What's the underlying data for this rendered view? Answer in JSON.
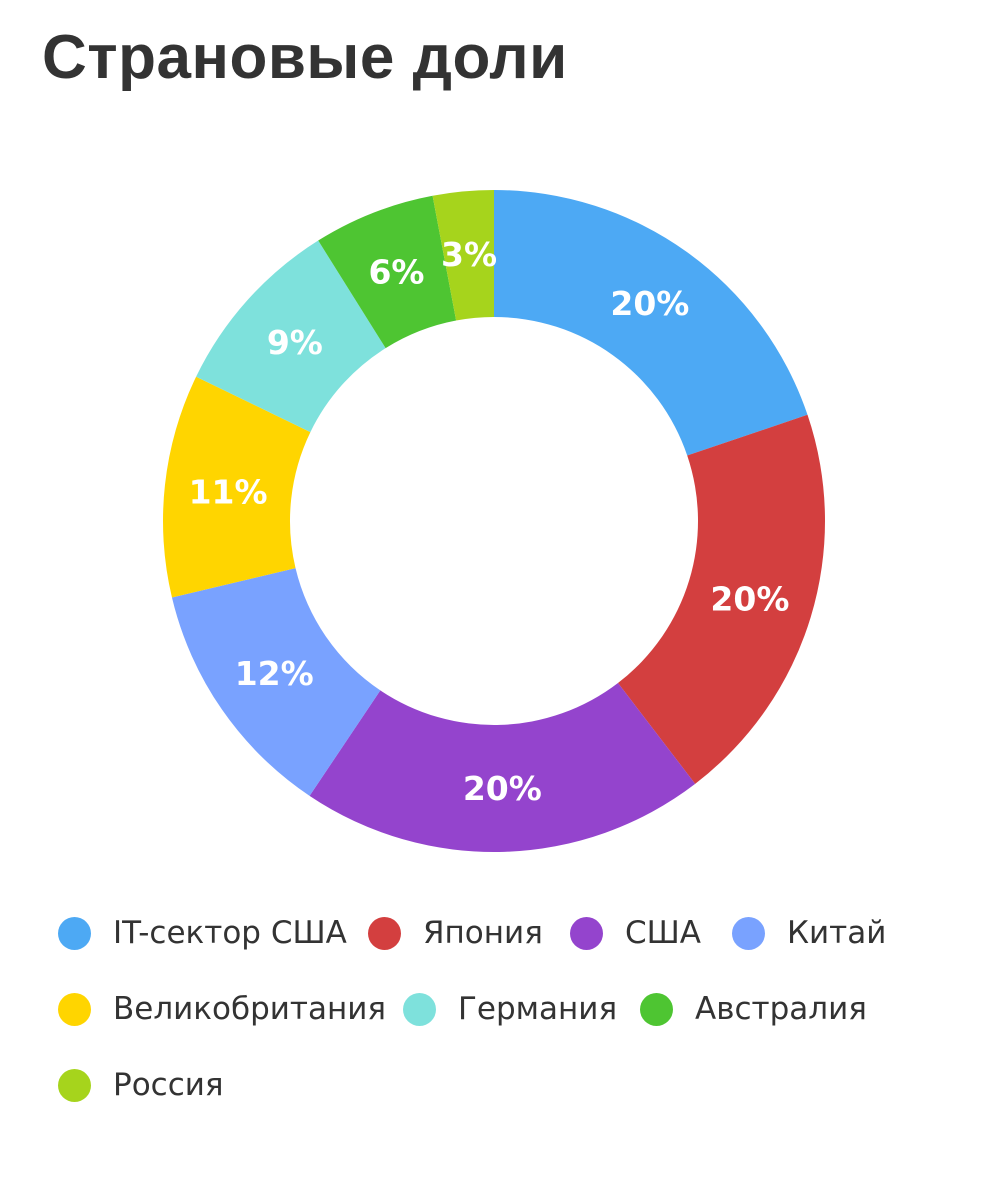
{
  "title": "Страновые доли",
  "chart_data": {
    "type": "pie",
    "donut": true,
    "title": "Страновые доли",
    "unit": "%",
    "legend_position": "bottom",
    "slices": [
      {
        "label": "IT-сектор США",
        "value": 20,
        "display": "20%",
        "color": "#4DA9F4"
      },
      {
        "label": "Япония",
        "value": 20,
        "display": "20%",
        "color": "#D33F3F"
      },
      {
        "label": "США",
        "value": 20,
        "display": "20%",
        "color": "#9444CD"
      },
      {
        "label": "Китай",
        "value": 12,
        "display": "12%",
        "color": "#79A2FF"
      },
      {
        "label": "Великобритания",
        "value": 11,
        "display": "11%",
        "color": "#FFD500"
      },
      {
        "label": "Германия",
        "value": 9,
        "display": "9%",
        "color": "#7EE1DC"
      },
      {
        "label": "Австралия",
        "value": 6,
        "display": "6%",
        "color": "#4EC532"
      },
      {
        "label": "Россия",
        "value": 3,
        "display": "3%",
        "color": "#A6D41C"
      }
    ]
  }
}
